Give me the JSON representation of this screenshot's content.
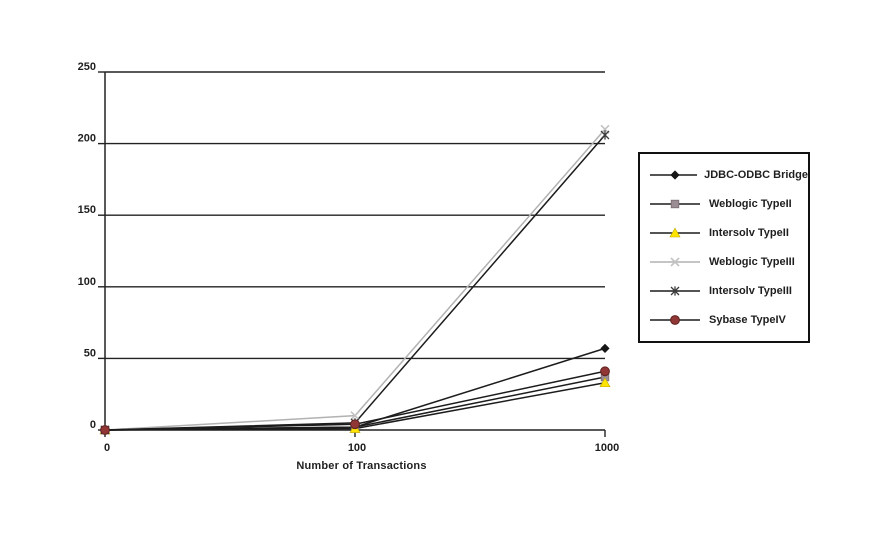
{
  "chart_data": {
    "type": "line",
    "title": "",
    "xlabel": "Number of Transactions",
    "ylabel": "",
    "categories": [
      0,
      100,
      1000
    ],
    "x_tick_labels": [
      "0",
      "100",
      "1000"
    ],
    "y_ticks": [
      0,
      50,
      100,
      150,
      200,
      250
    ],
    "ylim": [
      0,
      250
    ],
    "grid": "horizontal",
    "legend_position": "right",
    "axis_color": "#222222",
    "series": [
      {
        "name": "JDBC-ODBC Bridge",
        "marker": "diamond",
        "marker_color": "#161616",
        "line_color": "#1c1c1c",
        "values": [
          0,
          2,
          57
        ]
      },
      {
        "name": "Weblogic TypeII",
        "marker": "square",
        "marker_color": "#9a8e94",
        "line_color": "#1c1c1c",
        "values": [
          0,
          2,
          37
        ]
      },
      {
        "name": "Intersolv TypeII",
        "marker": "triangle",
        "marker_color": "#ffe400",
        "line_color": "#1c1c1c",
        "values": [
          0,
          1,
          33
        ]
      },
      {
        "name": "Weblogic TypeIII",
        "marker": "x",
        "marker_color": "#c3c3c3",
        "line_color": "#b2b2b2",
        "values": [
          0,
          10,
          210
        ]
      },
      {
        "name": "Intersolv TypeIII",
        "marker": "asterisk",
        "marker_color": "#3c3c3c",
        "line_color": "#1c1c1c",
        "values": [
          0,
          5,
          206
        ]
      },
      {
        "name": "Sybase TypeIV",
        "marker": "circle",
        "marker_color": "#903735",
        "line_color": "#1c1c1c",
        "values": [
          0,
          4,
          41
        ]
      }
    ]
  }
}
